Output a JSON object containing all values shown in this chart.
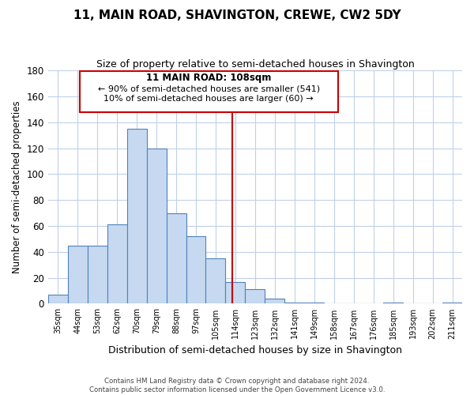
{
  "title": "11, MAIN ROAD, SHAVINGTON, CREWE, CW2 5DY",
  "subtitle": "Size of property relative to semi-detached houses in Shavington",
  "xlabel": "Distribution of semi-detached houses by size in Shavington",
  "ylabel": "Number of semi-detached properties",
  "footer_line1": "Contains HM Land Registry data © Crown copyright and database right 2024.",
  "footer_line2": "Contains public sector information licensed under the Open Government Licence v3.0.",
  "bar_labels": [
    "35sqm",
    "44sqm",
    "53sqm",
    "62sqm",
    "70sqm",
    "79sqm",
    "88sqm",
    "97sqm",
    "105sqm",
    "114sqm",
    "123sqm",
    "132sqm",
    "141sqm",
    "149sqm",
    "158sqm",
    "167sqm",
    "176sqm",
    "185sqm",
    "193sqm",
    "202sqm",
    "211sqm"
  ],
  "bar_values": [
    7,
    45,
    45,
    61,
    135,
    120,
    70,
    52,
    35,
    17,
    11,
    4,
    1,
    1,
    0,
    0,
    0,
    1,
    0,
    0,
    1
  ],
  "bar_color": "#c6d9f0",
  "bar_edge_color": "#4f81bd",
  "grid_color": "#c0d0e8",
  "property_line_label": "11 MAIN ROAD: 108sqm",
  "annotation_line1": "← 90% of semi-detached houses are smaller (541)",
  "annotation_line2": "10% of semi-detached houses are larger (60) →",
  "annotation_box_edge": "#cc0000",
  "property_line_color": "#cc0000",
  "ylim": [
    0,
    180
  ],
  "yticks": [
    0,
    20,
    40,
    60,
    80,
    100,
    120,
    140,
    160,
    180
  ]
}
